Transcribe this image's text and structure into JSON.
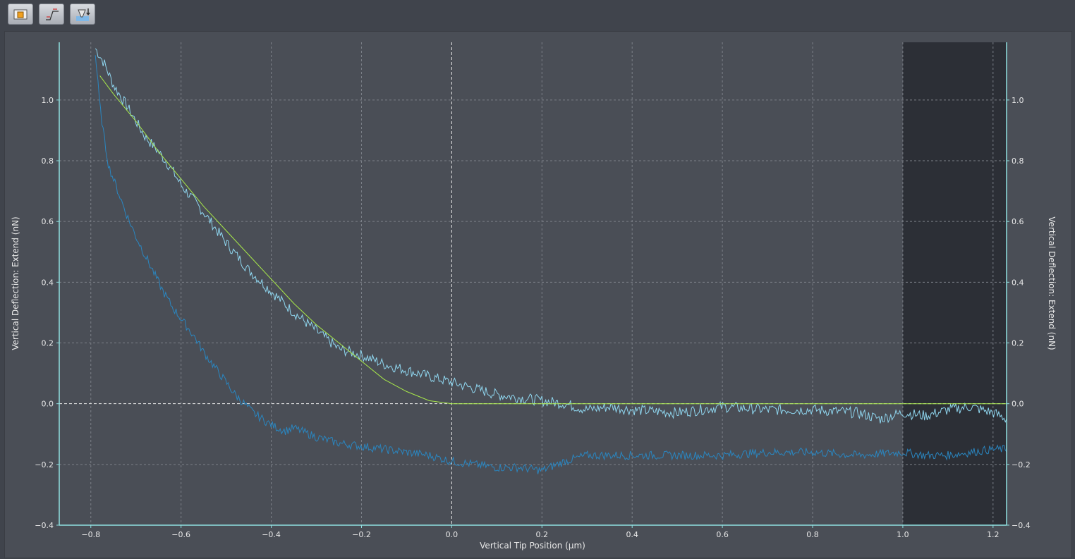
{
  "toolbar": {
    "buttons": [
      {
        "name": "open-folder-button",
        "icon": "folder-icon"
      },
      {
        "name": "baseline-tool-button",
        "icon": "baseline-step-icon"
      },
      {
        "name": "indentation-tool-button",
        "icon": "indenter-download-icon"
      }
    ]
  },
  "colors": {
    "background": "#4a4e56",
    "excluded_region": "#2c2f36",
    "extend_curve": "#8fd6ef",
    "retract_curve": "#2a86c0",
    "fit_curve": "#a8e84a",
    "axis": "#8fe0e0",
    "grid": "#7c8088",
    "zero_line": "#e8e8e8"
  },
  "chart_data": {
    "type": "line",
    "title": "",
    "xlabel": "Vertical Tip Position (µm)",
    "ylabel": "Vertical Deflection: Extend (nN)",
    "ylabel_right": "Vertical Deflection: Extend (nN)",
    "xlim": [
      -0.87,
      1.23
    ],
    "ylim": [
      -0.4,
      1.19
    ],
    "xticks": [
      "−0.8",
      "−0.6",
      "−0.4",
      "−0.2",
      "0.0",
      "0.2",
      "0.4",
      "0.6",
      "0.8",
      "1.0",
      "1.2"
    ],
    "xtick_values": [
      -0.8,
      -0.6,
      -0.4,
      -0.2,
      0.0,
      0.2,
      0.4,
      0.6,
      0.8,
      1.0,
      1.2
    ],
    "yticks": [
      "1.0",
      "0.8",
      "0.6",
      "0.4",
      "0.2",
      "0.0",
      "−0.2",
      "−0.4"
    ],
    "ytick_values": [
      1.0,
      0.8,
      0.6,
      0.4,
      0.2,
      0.0,
      -0.2,
      -0.4
    ],
    "grid": true,
    "excluded_region": [
      1.0,
      1.2
    ],
    "series": [
      {
        "style": "extend",
        "x": [
          -0.79,
          -0.77,
          -0.75,
          -0.72,
          -0.7,
          -0.68,
          -0.65,
          -0.62,
          -0.6,
          -0.55,
          -0.5,
          -0.45,
          -0.4,
          -0.35,
          -0.3,
          -0.25,
          -0.2,
          -0.15,
          -0.1,
          -0.05,
          0.0,
          0.05,
          0.1,
          0.15,
          0.2,
          0.25,
          0.3,
          0.35,
          0.4,
          0.5,
          0.6,
          0.7,
          0.8,
          0.9,
          0.95,
          1.0,
          1.05,
          1.1,
          1.15,
          1.2,
          1.23
        ],
        "y": [
          1.17,
          1.12,
          1.05,
          0.98,
          0.93,
          0.88,
          0.83,
          0.77,
          0.72,
          0.63,
          0.53,
          0.44,
          0.37,
          0.3,
          0.24,
          0.18,
          0.16,
          0.13,
          0.11,
          0.09,
          0.07,
          0.05,
          0.03,
          0.02,
          0.01,
          0.0,
          -0.02,
          -0.01,
          -0.02,
          -0.03,
          -0.01,
          -0.02,
          -0.02,
          -0.03,
          -0.05,
          -0.03,
          -0.04,
          -0.02,
          -0.01,
          -0.03,
          -0.05
        ]
      },
      {
        "style": "retract",
        "x": [
          -0.79,
          -0.78,
          -0.77,
          -0.76,
          -0.74,
          -0.72,
          -0.7,
          -0.68,
          -0.66,
          -0.64,
          -0.62,
          -0.6,
          -0.57,
          -0.55,
          -0.52,
          -0.5,
          -0.48,
          -0.46,
          -0.44,
          -0.42,
          -0.4,
          -0.37,
          -0.35,
          -0.3,
          -0.25,
          -0.2,
          -0.15,
          -0.1,
          -0.05,
          0.0,
          0.05,
          0.1,
          0.15,
          0.2,
          0.25,
          0.3,
          0.4,
          0.5,
          0.6,
          0.7,
          0.8,
          0.9,
          1.0,
          1.05,
          1.1,
          1.15,
          1.2,
          1.23
        ],
        "y": [
          1.15,
          0.98,
          0.87,
          0.78,
          0.7,
          0.62,
          0.55,
          0.49,
          0.43,
          0.37,
          0.32,
          0.28,
          0.22,
          0.17,
          0.11,
          0.07,
          0.03,
          0.0,
          -0.03,
          -0.05,
          -0.07,
          -0.09,
          -0.08,
          -0.11,
          -0.13,
          -0.14,
          -0.15,
          -0.16,
          -0.17,
          -0.19,
          -0.2,
          -0.21,
          -0.21,
          -0.22,
          -0.19,
          -0.17,
          -0.17,
          -0.17,
          -0.17,
          -0.16,
          -0.16,
          -0.17,
          -0.16,
          -0.17,
          -0.17,
          -0.16,
          -0.15,
          -0.15
        ]
      },
      {
        "style": "fit",
        "x": [
          -0.78,
          -0.75,
          -0.7,
          -0.65,
          -0.6,
          -0.55,
          -0.5,
          -0.45,
          -0.4,
          -0.35,
          -0.3,
          -0.25,
          -0.2,
          -0.15,
          -0.1,
          -0.05,
          0.0,
          0.2,
          0.4,
          0.6,
          0.8,
          1.0,
          1.23
        ],
        "y": [
          1.08,
          1.02,
          0.93,
          0.83,
          0.74,
          0.65,
          0.57,
          0.49,
          0.41,
          0.33,
          0.26,
          0.2,
          0.14,
          0.08,
          0.04,
          0.01,
          0.0,
          0.0,
          0.0,
          0.0,
          0.0,
          0.0,
          0.0
        ]
      }
    ]
  }
}
